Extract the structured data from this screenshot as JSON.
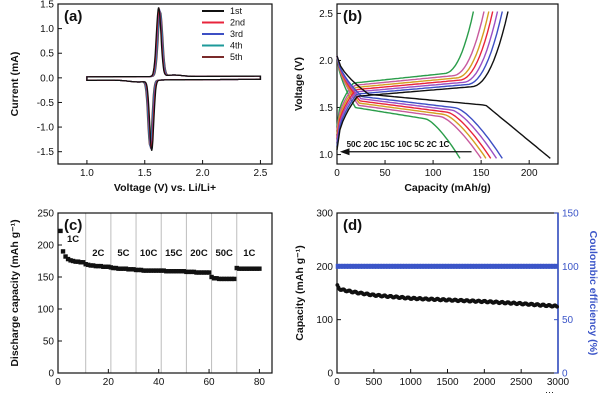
{
  "chart_data": [
    {
      "type": "line",
      "panel_label": "(a)",
      "xlabel": "Voltage (V) vs. Li/Li+",
      "ylabel": "Current (mA)",
      "xlim": [
        0.75,
        2.6
      ],
      "ylim": [
        -1.75,
        1.5
      ],
      "xticks": [
        "1.0",
        "1.5",
        "2.0",
        "2.5"
      ],
      "xtick_values": [
        1.0,
        1.5,
        2.0,
        2.5
      ],
      "yticks": [
        "-1.5",
        "-1.0",
        "-0.5",
        "0.0",
        "0.5",
        "1.0",
        "1.5"
      ],
      "ytick_values": [
        -1.5,
        -1.0,
        -0.5,
        0.0,
        0.5,
        1.0,
        1.5
      ],
      "legend_position": "top-right",
      "series": [
        {
          "name": "1st",
          "color": "#111111",
          "anodic_peak": [
            1.62,
            1.4
          ],
          "cathodic_peak": [
            1.56,
            -1.42
          ]
        },
        {
          "name": "2nd",
          "color": "#e8243c",
          "anodic_peak": [
            1.62,
            1.36
          ],
          "cathodic_peak": [
            1.56,
            -1.38
          ]
        },
        {
          "name": "3rd",
          "color": "#3d4fc4",
          "anodic_peak": [
            1.62,
            1.34
          ],
          "cathodic_peak": [
            1.56,
            -1.36
          ]
        },
        {
          "name": "4th",
          "color": "#1d9a9a",
          "anodic_peak": [
            1.62,
            1.32
          ],
          "cathodic_peak": [
            1.56,
            -1.34
          ]
        },
        {
          "name": "5th",
          "color": "#7a2a2a",
          "anodic_peak": [
            1.62,
            1.3
          ],
          "cathodic_peak": [
            1.56,
            -1.32
          ]
        }
      ]
    },
    {
      "type": "line",
      "panel_label": "(b)",
      "xlabel": "Capacity (mAh/g)",
      "ylabel": "Voltage (V)",
      "xlim": [
        0,
        230
      ],
      "ylim": [
        0.9,
        2.6
      ],
      "xticks": [
        "0",
        "50",
        "100",
        "150",
        "200"
      ],
      "xtick_values": [
        0,
        50,
        100,
        150,
        200
      ],
      "yticks": [
        "1.0",
        "1.5",
        "2.0",
        "2.5"
      ],
      "ytick_values": [
        1.0,
        1.5,
        2.0,
        2.5
      ],
      "annotation": "50C 20C 15C 10C 5C 2C 1C",
      "series": [
        {
          "name": "1C",
          "color": "#111111",
          "capacity": 222,
          "charge_capacity": 178
        },
        {
          "name": "2C",
          "color": "#3d4fc4",
          "capacity": 172,
          "charge_capacity": 172
        },
        {
          "name": "5C",
          "color": "#9b4fc4",
          "capacity": 166,
          "charge_capacity": 167
        },
        {
          "name": "10C",
          "color": "#e8243c",
          "capacity": 160,
          "charge_capacity": 162
        },
        {
          "name": "15C",
          "color": "#d4a020",
          "capacity": 155,
          "charge_capacity": 158
        },
        {
          "name": "20C",
          "color": "#c85a9e",
          "capacity": 150,
          "charge_capacity": 153
        },
        {
          "name": "50C",
          "color": "#2a9d4a",
          "capacity": 128,
          "charge_capacity": 142
        }
      ]
    },
    {
      "type": "scatter",
      "panel_label": "(c)",
      "xlabel": "",
      "ylabel": "Discharge capacity (mAh g⁻¹)",
      "xlim": [
        0,
        85
      ],
      "ylim": [
        0,
        250
      ],
      "xticks": [
        "0",
        "20",
        "40",
        "60",
        "80"
      ],
      "xtick_values": [
        0,
        20,
        40,
        60,
        80
      ],
      "yticks": [
        "0",
        "50",
        "100",
        "150",
        "200",
        "250"
      ],
      "ytick_values": [
        0,
        50,
        100,
        150,
        200,
        250
      ],
      "separators": [
        11,
        21,
        31,
        41,
        51,
        61,
        71
      ],
      "segments": [
        {
          "label": "1C",
          "cycles": [
            1,
            10
          ],
          "values": [
            222,
            190,
            182,
            178,
            176,
            175,
            174,
            174,
            173,
            173
          ]
        },
        {
          "label": "2C",
          "cycles": [
            11,
            20
          ],
          "values": [
            170,
            169,
            168,
            168,
            167,
            167,
            167,
            166,
            166,
            166
          ]
        },
        {
          "label": "5C",
          "cycles": [
            21,
            30
          ],
          "values": [
            165,
            164,
            164,
            163,
            163,
            163,
            163,
            162,
            162,
            162
          ]
        },
        {
          "label": "10C",
          "cycles": [
            31,
            40
          ],
          "values": [
            161,
            161,
            161,
            160,
            160,
            160,
            160,
            160,
            160,
            160
          ]
        },
        {
          "label": "15C",
          "cycles": [
            41,
            50
          ],
          "values": [
            160,
            160,
            159,
            159,
            159,
            159,
            159,
            159,
            159,
            159
          ]
        },
        {
          "label": "20C",
          "cycles": [
            51,
            60
          ],
          "values": [
            158,
            158,
            158,
            158,
            157,
            157,
            157,
            157,
            157,
            157
          ]
        },
        {
          "label": "50C",
          "cycles": [
            61,
            70
          ],
          "values": [
            150,
            148,
            148,
            147,
            147,
            147,
            147,
            147,
            147,
            147
          ]
        },
        {
          "label": "1C",
          "cycles": [
            71,
            80
          ],
          "values": [
            164,
            163,
            163,
            163,
            163,
            163,
            163,
            163,
            163,
            163
          ]
        }
      ]
    },
    {
      "type": "scatter",
      "panel_label": "(d)",
      "xlabel": "",
      "ylabel": "Capacity (mAh g⁻¹)",
      "y2label": "Coulombic efficiency (%)",
      "xlim": [
        0,
        3000
      ],
      "ylim": [
        0,
        300
      ],
      "y2lim": [
        0,
        150
      ],
      "xticks": [
        "0",
        "500",
        "1000",
        "1500",
        "2000",
        "2500",
        "3000"
      ],
      "xtick_values": [
        0,
        500,
        1000,
        1500,
        2000,
        2500,
        3000
      ],
      "yticks": [
        "0",
        "100",
        "200",
        "300"
      ],
      "ytick_values": [
        0,
        100,
        200,
        300
      ],
      "y2ticks": [
        "0",
        "50",
        "100",
        "150"
      ],
      "y2tick_values": [
        0,
        50,
        100,
        150
      ],
      "colors": {
        "capacity": "#111111",
        "efficiency": "#3b55c8",
        "right_axis": "#3b55c8"
      },
      "capacity_curve": {
        "x": [
          0,
          25,
          100,
          300,
          500,
          1000,
          1500,
          2000,
          2500,
          3000
        ],
        "y": [
          165,
          158,
          155,
          150,
          146,
          140,
          137,
          134,
          130,
          125
        ]
      },
      "efficiency": 100
    }
  ]
}
